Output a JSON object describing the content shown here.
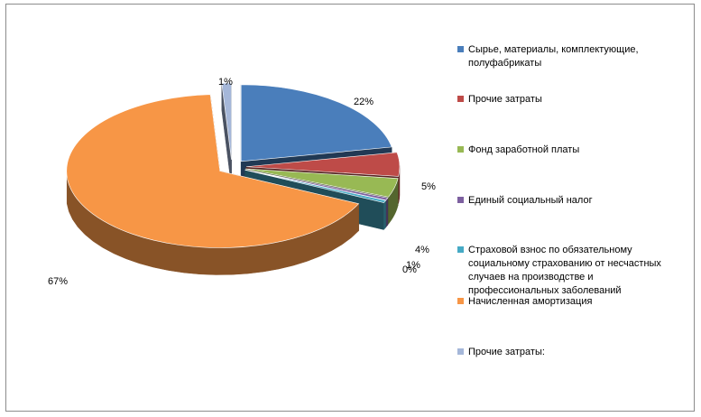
{
  "chart_data": {
    "type": "pie",
    "title": "",
    "slices": [
      {
        "label": "Сырье, материалы, комплектующие, полуфабрикаты",
        "value": 22,
        "display": "22%",
        "color": "#4a7ebb"
      },
      {
        "label": "Прочие затраты",
        "value": 5,
        "display": "5%",
        "color": "#be4b48"
      },
      {
        "label": "Фонд заработной платы",
        "value": 4,
        "display": "4%",
        "color": "#98b954"
      },
      {
        "label": "Единый социальный налог",
        "value": 0.5,
        "display": "1%",
        "color": "#7d60a0"
      },
      {
        "label": "Страховой взнос по обязательному социальному страхованию от несчастных случаев на производстве и профессиональных заболеваний",
        "value": 0.5,
        "display": "0%",
        "color": "#46aac5"
      },
      {
        "label": "Начисленная амортизация",
        "value": 67,
        "display": "67%",
        "color": "#f79646"
      },
      {
        "label": "Прочие затраты:",
        "value": 1,
        "display": "1%",
        "color": "#a5b7d9"
      }
    ],
    "legend_position": "right"
  }
}
